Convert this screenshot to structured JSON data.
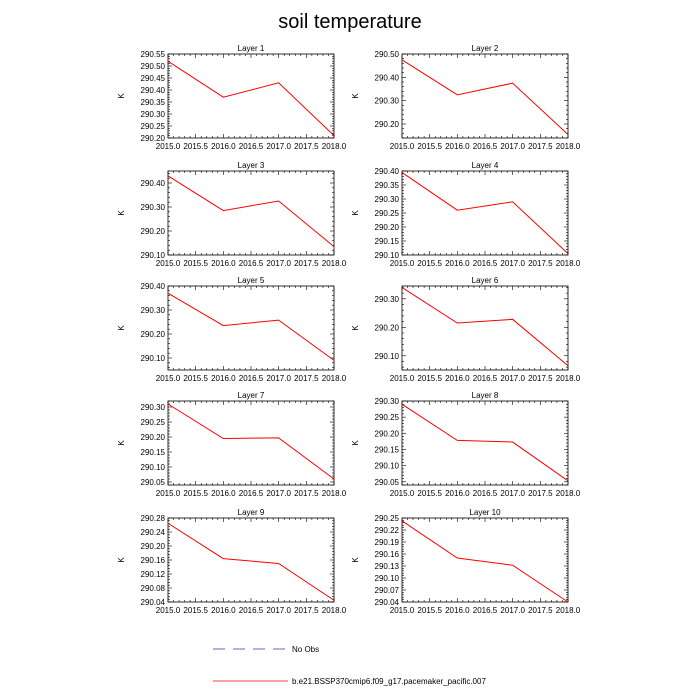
{
  "title": "soil temperature",
  "legend": {
    "obs_label": "No Obs",
    "model_label": "b.e21.BSSP370cmip6.f09_g17.pacemaker_pacific.007"
  },
  "colors": {
    "line": "#ff0000",
    "obs": "#3333aa",
    "axis": "#000000"
  },
  "chart_data": [
    {
      "type": "line",
      "title": "Layer 1",
      "ylabel": "K",
      "x": [
        2015.0,
        2016.0,
        2017.0,
        2018.0
      ],
      "values": [
        290.52,
        290.37,
        290.43,
        290.21
      ],
      "xlim": [
        2015.0,
        2018.0
      ],
      "ylim": [
        290.2,
        290.55
      ],
      "xticks": [
        "2015.0",
        "2015.5",
        "2016.0",
        "2016.5",
        "2017.0",
        "2017.5",
        "2018.0"
      ],
      "yticks": [
        "290.20",
        "290.25",
        "290.30",
        "290.35",
        "290.40",
        "290.45",
        "290.50",
        "290.55"
      ]
    },
    {
      "type": "line",
      "title": "Layer 2",
      "ylabel": "K",
      "x": [
        2015.0,
        2016.0,
        2017.0,
        2018.0
      ],
      "values": [
        290.475,
        290.325,
        290.375,
        290.155
      ],
      "xlim": [
        2015.0,
        2018.0
      ],
      "ylim": [
        290.14,
        290.5
      ],
      "xticks": [
        "2015.0",
        "2015.5",
        "2016.0",
        "2016.5",
        "2017.0",
        "2017.5",
        "2018.0"
      ],
      "yticks": [
        "290.20",
        "290.30",
        "290.40",
        "290.50"
      ]
    },
    {
      "type": "line",
      "title": "Layer 3",
      "ylabel": "K",
      "x": [
        2015.0,
        2016.0,
        2017.0,
        2018.0
      ],
      "values": [
        290.43,
        290.285,
        290.325,
        290.135
      ],
      "xlim": [
        2015.0,
        2018.0
      ],
      "ylim": [
        290.1,
        290.45
      ],
      "xticks": [
        "2015.0",
        "2015.5",
        "2016.0",
        "2016.5",
        "2017.0",
        "2017.5",
        "2018.0"
      ],
      "yticks": [
        "290.10",
        "290.20",
        "290.30",
        "290.40"
      ]
    },
    {
      "type": "line",
      "title": "Layer 4",
      "ylabel": "K",
      "x": [
        2015.0,
        2016.0,
        2017.0,
        2018.0
      ],
      "values": [
        290.395,
        290.26,
        290.29,
        290.105
      ],
      "xlim": [
        2015.0,
        2018.0
      ],
      "ylim": [
        290.1,
        290.4
      ],
      "xticks": [
        "2015.0",
        "2015.5",
        "2016.0",
        "2016.5",
        "2017.0",
        "2017.5",
        "2018.0"
      ],
      "yticks": [
        "290.10",
        "290.15",
        "290.20",
        "290.25",
        "290.30",
        "290.35",
        "290.40"
      ]
    },
    {
      "type": "line",
      "title": "Layer 5",
      "ylabel": "K",
      "x": [
        2015.0,
        2016.0,
        2017.0,
        2018.0
      ],
      "values": [
        290.37,
        290.235,
        290.258,
        290.09
      ],
      "xlim": [
        2015.0,
        2018.0
      ],
      "ylim": [
        290.05,
        290.4
      ],
      "xticks": [
        "2015.0",
        "2015.5",
        "2016.0",
        "2016.5",
        "2017.0",
        "2017.5",
        "2018.0"
      ],
      "yticks": [
        "290.10",
        "290.20",
        "290.30",
        "290.40"
      ]
    },
    {
      "type": "line",
      "title": "Layer 6",
      "ylabel": "K",
      "x": [
        2015.0,
        2016.0,
        2017.0,
        2018.0
      ],
      "values": [
        290.34,
        290.215,
        290.228,
        290.065
      ],
      "xlim": [
        2015.0,
        2018.0
      ],
      "ylim": [
        290.05,
        290.345
      ],
      "xticks": [
        "2015.0",
        "2015.5",
        "2016.0",
        "2016.5",
        "2017.0",
        "2017.5",
        "2018.0"
      ],
      "yticks": [
        "290.10",
        "290.20",
        "290.30"
      ]
    },
    {
      "type": "line",
      "title": "Layer 7",
      "ylabel": "K",
      "x": [
        2015.0,
        2016.0,
        2017.0,
        2018.0
      ],
      "values": [
        290.31,
        290.195,
        290.197,
        290.06
      ],
      "xlim": [
        2015.0,
        2018.0
      ],
      "ylim": [
        290.04,
        290.32
      ],
      "xticks": [
        "2015.0",
        "2015.5",
        "2016.0",
        "2016.5",
        "2017.0",
        "2017.5",
        "2018.0"
      ],
      "yticks": [
        "290.05",
        "290.10",
        "290.15",
        "290.20",
        "290.25",
        "290.30"
      ]
    },
    {
      "type": "line",
      "title": "Layer 8",
      "ylabel": "K",
      "x": [
        2015.0,
        2016.0,
        2017.0,
        2018.0
      ],
      "values": [
        290.29,
        290.178,
        290.173,
        290.053
      ],
      "xlim": [
        2015.0,
        2018.0
      ],
      "ylim": [
        290.04,
        290.3
      ],
      "xticks": [
        "2015.0",
        "2015.5",
        "2016.0",
        "2016.5",
        "2017.0",
        "2017.5",
        "2018.0"
      ],
      "yticks": [
        "290.05",
        "290.10",
        "290.15",
        "290.20",
        "290.25",
        "290.30"
      ]
    },
    {
      "type": "line",
      "title": "Layer 9",
      "ylabel": "K",
      "x": [
        2015.0,
        2016.0,
        2017.0,
        2018.0
      ],
      "values": [
        290.265,
        290.164,
        290.15,
        290.045
      ],
      "xlim": [
        2015.0,
        2018.0
      ],
      "ylim": [
        290.04,
        290.28
      ],
      "xticks": [
        "2015.0",
        "2015.5",
        "2016.0",
        "2016.5",
        "2017.0",
        "2017.5",
        "2018.0"
      ],
      "yticks": [
        "290.04",
        "290.08",
        "290.12",
        "290.16",
        "290.20",
        "290.24",
        "290.28"
      ]
    },
    {
      "type": "line",
      "title": "Layer 10",
      "ylabel": "K",
      "x": [
        2015.0,
        2016.0,
        2017.0,
        2018.0
      ],
      "values": [
        290.243,
        290.15,
        290.132,
        290.04
      ],
      "xlim": [
        2015.0,
        2018.0
      ],
      "ylim": [
        290.04,
        290.25
      ],
      "xticks": [
        "2015.0",
        "2015.5",
        "2016.0",
        "2016.5",
        "2017.0",
        "2017.5",
        "2018.0"
      ],
      "yticks": [
        "290.04",
        "290.07",
        "290.10",
        "290.13",
        "290.16",
        "290.19",
        "290.22",
        "290.25"
      ]
    }
  ]
}
